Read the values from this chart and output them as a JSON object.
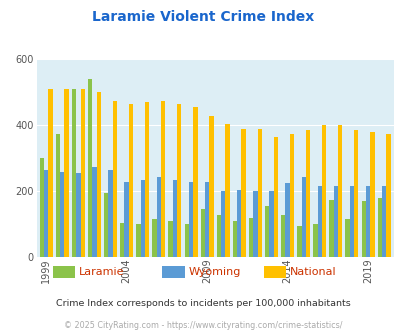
{
  "title": "Laramie Violent Crime Index",
  "title_color": "#1a66cc",
  "years": [
    1999,
    2000,
    2001,
    2002,
    2003,
    2004,
    2005,
    2006,
    2007,
    2008,
    2009,
    2010,
    2011,
    2012,
    2013,
    2014,
    2015,
    2016,
    2017,
    2018,
    2019,
    2020
  ],
  "laramie": [
    300,
    375,
    510,
    540,
    195,
    105,
    100,
    115,
    110,
    100,
    148,
    130,
    110,
    120,
    155,
    130,
    95,
    100,
    175,
    115,
    170,
    180
  ],
  "wyoming": [
    265,
    260,
    255,
    275,
    265,
    230,
    235,
    245,
    235,
    230,
    230,
    200,
    205,
    200,
    200,
    225,
    245,
    215,
    215,
    215,
    215,
    215
  ],
  "national": [
    510,
    510,
    510,
    500,
    475,
    465,
    470,
    475,
    465,
    455,
    430,
    405,
    390,
    390,
    365,
    375,
    385,
    400,
    400,
    385,
    380,
    375
  ],
  "laramie_color": "#8bc34a",
  "wyoming_color": "#5b9bd5",
  "national_color": "#ffc000",
  "plot_bg": "#ddeef5",
  "ylim": [
    0,
    600
  ],
  "yticks": [
    0,
    200,
    400,
    600
  ],
  "xlabel_ticks": [
    1999,
    2004,
    2009,
    2014,
    2019
  ],
  "footnote1": "Crime Index corresponds to incidents per 100,000 inhabitants",
  "footnote2": "© 2025 CityRating.com - https://www.cityrating.com/crime-statistics/",
  "footnote1_color": "#333333",
  "footnote2_color": "#aaaaaa",
  "legend_labels": [
    "Laramie",
    "Wyoming",
    "National"
  ],
  "legend_colors": [
    "#8bc34a",
    "#5b9bd5",
    "#ffc000"
  ],
  "legend_text_color": "#cc3300"
}
